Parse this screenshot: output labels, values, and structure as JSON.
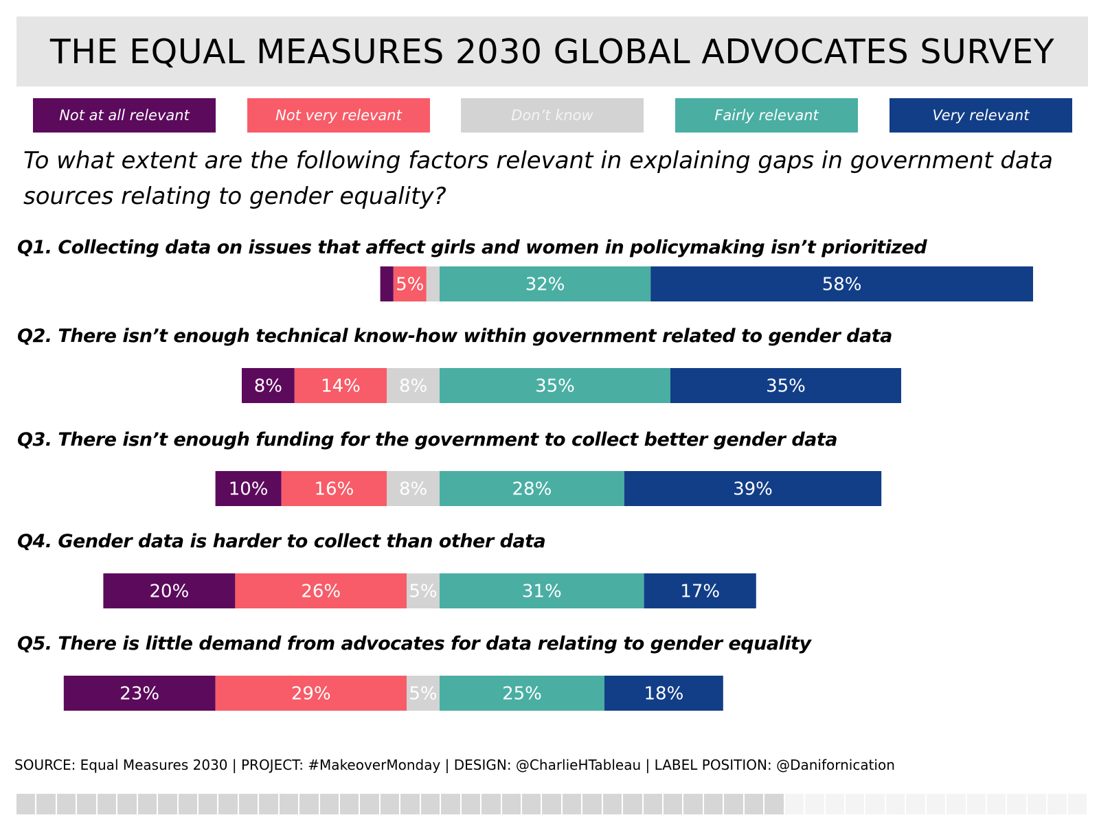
{
  "title": "THE EQUAL MEASURES 2030 GLOBAL ADVOCATES SURVEY",
  "question": "To what extent are the following factors relevant in explaining gaps in government data sources relating to gender equality?",
  "source": "SOURCE: Equal Measures 2030 | PROJECT: #MakeoverMonday | DESIGN: @CharlieHTableau | LABEL POSITION: @Danifornication",
  "colors": {
    "not_at_all": "#5c0a5c",
    "not_very": "#f75c68",
    "dont_know": "#d3d3d3",
    "fairly": "#4aaea3",
    "very": "#123e87"
  },
  "chart_data": {
    "type": "bar",
    "orientation": "horizontal",
    "stacked": "diverging",
    "legend_placement": "top",
    "grid": false,
    "categories": [
      "Q1. Collecting data on issues that affect girls and women in policymaking isn’t prioritized",
      "Q2. There isn’t enough technical know-how within government related to gender data",
      "Q3. There isn’t enough funding for the government to collect better gender data",
      "Q4. Gender data is harder to collect than other data",
      "Q5. There is little demand from advocates for data relating to gender equality"
    ],
    "series": [
      {
        "name": "Not at all relevant",
        "color_key": "not_at_all",
        "values": [
          2,
          8,
          10,
          20,
          23
        ],
        "labels": [
          "",
          "8%",
          "10%",
          "20%",
          "23%"
        ]
      },
      {
        "name": "Not very relevant",
        "color_key": "not_very",
        "values": [
          5,
          14,
          16,
          26,
          29
        ],
        "labels": [
          "5%",
          "14%",
          "16%",
          "26%",
          "29%"
        ]
      },
      {
        "name": "Don’t know",
        "color_key": "dont_know",
        "values": [
          2,
          8,
          8,
          5,
          5
        ],
        "labels": [
          "",
          "8%",
          "8%",
          "5%",
          "5%"
        ]
      },
      {
        "name": "Fairly relevant",
        "color_key": "fairly",
        "values": [
          32,
          35,
          28,
          31,
          25
        ],
        "labels": [
          "32%",
          "35%",
          "28%",
          "31%",
          "25%"
        ]
      },
      {
        "name": "Very relevant",
        "color_key": "very",
        "values": [
          58,
          35,
          39,
          17,
          18
        ],
        "labels": [
          "58%",
          "35%",
          "39%",
          "17%",
          "18%"
        ]
      }
    ]
  }
}
